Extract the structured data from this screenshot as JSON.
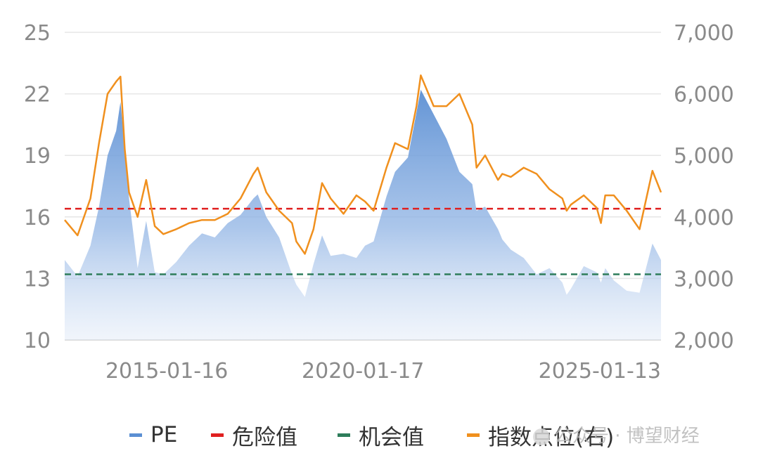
{
  "chart_data": {
    "type": "area",
    "title": "",
    "x_ticks": [
      "2015-01-16",
      "2020-01-17",
      "2025-01-13"
    ],
    "y_left": {
      "ticks": [
        10,
        13,
        16,
        19,
        22,
        25
      ],
      "tick_labels": [
        "10",
        "13",
        "16",
        "19",
        "22",
        "25"
      ],
      "range": [
        10,
        25
      ]
    },
    "y_right": {
      "ticks": [
        2000,
        3000,
        4000,
        5000,
        6000,
        7000
      ],
      "tick_labels": [
        "2,000",
        "3,000",
        "4,000",
        "5,000",
        "6,000",
        "7,000"
      ],
      "range": [
        2000,
        7000
      ]
    },
    "grid": "horizontal",
    "legend_position": "bottom",
    "x_range": [
      "2014-04",
      "2025-11"
    ],
    "series": [
      {
        "name": "PE",
        "kind": "area",
        "axis": "left",
        "color": "#5b8fd3",
        "x": [
          "2014-04",
          "2014-07",
          "2014-10",
          "2014-12",
          "2015-02",
          "2015-04",
          "2015-05",
          "2015-06",
          "2015-07",
          "2015-09",
          "2015-11",
          "2016-01",
          "2016-03",
          "2016-06",
          "2016-09",
          "2016-12",
          "2017-03",
          "2017-06",
          "2017-09",
          "2017-12",
          "2018-01",
          "2018-03",
          "2018-06",
          "2018-09",
          "2018-10",
          "2018-12",
          "2019-02",
          "2019-04",
          "2019-06",
          "2019-09",
          "2019-12",
          "2020-02",
          "2020-04",
          "2020-07",
          "2020-09",
          "2020-12",
          "2021-02",
          "2021-03",
          "2021-06",
          "2021-09",
          "2021-12",
          "2022-03",
          "2022-04",
          "2022-06",
          "2022-09",
          "2022-10",
          "2022-12",
          "2023-03",
          "2023-06",
          "2023-09",
          "2023-12",
          "2024-01",
          "2024-02",
          "2024-05",
          "2024-08",
          "2024-09",
          "2024-10",
          "2024-12",
          "2025-03",
          "2025-06",
          "2025-09",
          "2025-11"
        ],
        "y": [
          13.9,
          13.1,
          14.6,
          16.5,
          19.0,
          20.2,
          21.6,
          19.4,
          16.9,
          13.5,
          15.8,
          13.3,
          13.2,
          13.8,
          14.6,
          15.2,
          15.0,
          15.7,
          16.1,
          16.9,
          17.1,
          16.0,
          15.0,
          13.2,
          12.7,
          12.1,
          13.7,
          15.1,
          14.1,
          14.2,
          14.0,
          14.6,
          14.8,
          17.0,
          18.2,
          18.9,
          21.1,
          22.2,
          21.0,
          19.8,
          18.2,
          17.6,
          16.3,
          16.5,
          15.4,
          14.9,
          14.4,
          14.0,
          13.2,
          13.5,
          12.8,
          12.2,
          12.5,
          13.6,
          13.3,
          12.8,
          13.5,
          12.9,
          12.4,
          12.3,
          14.7,
          13.9
        ]
      },
      {
        "name": "危险值",
        "kind": "hline",
        "axis": "left",
        "value": 16.4,
        "color": "#e02020"
      },
      {
        "name": "机会值",
        "kind": "hline",
        "axis": "left",
        "value": 13.2,
        "color": "#2e7d5b"
      },
      {
        "name": "指数点位(右)",
        "kind": "line",
        "axis": "right",
        "color": "#f0901e",
        "x": [
          "2014-04",
          "2014-07",
          "2014-10",
          "2014-12",
          "2015-02",
          "2015-04",
          "2015-05",
          "2015-06",
          "2015-07",
          "2015-09",
          "2015-11",
          "2016-01",
          "2016-03",
          "2016-06",
          "2016-09",
          "2016-12",
          "2017-03",
          "2017-06",
          "2017-09",
          "2017-12",
          "2018-01",
          "2018-03",
          "2018-06",
          "2018-09",
          "2018-10",
          "2018-12",
          "2019-02",
          "2019-04",
          "2019-06",
          "2019-09",
          "2019-12",
          "2020-02",
          "2020-04",
          "2020-07",
          "2020-09",
          "2020-12",
          "2021-02",
          "2021-03",
          "2021-06",
          "2021-09",
          "2021-12",
          "2022-03",
          "2022-04",
          "2022-06",
          "2022-09",
          "2022-10",
          "2022-12",
          "2023-03",
          "2023-06",
          "2023-09",
          "2023-12",
          "2024-01",
          "2024-02",
          "2024-05",
          "2024-08",
          "2024-09",
          "2024-10",
          "2024-12",
          "2025-03",
          "2025-06",
          "2025-09",
          "2025-11"
        ],
        "y": [
          3950,
          3700,
          4300,
          5200,
          6000,
          6200,
          6280,
          5100,
          4400,
          4000,
          4600,
          3850,
          3720,
          3800,
          3900,
          3950,
          3950,
          4050,
          4300,
          4700,
          4800,
          4400,
          4100,
          3900,
          3600,
          3400,
          3800,
          4550,
          4300,
          4050,
          4350,
          4250,
          4100,
          4800,
          5200,
          5100,
          5800,
          6300,
          5800,
          5800,
          6000,
          5500,
          4800,
          5000,
          4600,
          4700,
          4650,
          4800,
          4700,
          4450,
          4300,
          4100,
          4200,
          4350,
          4150,
          3900,
          4350,
          4350,
          4100,
          3800,
          4750,
          4400
        ]
      }
    ]
  },
  "watermark": {
    "text": "公众号 · 博望财经",
    "icon": "wechat-icon"
  }
}
